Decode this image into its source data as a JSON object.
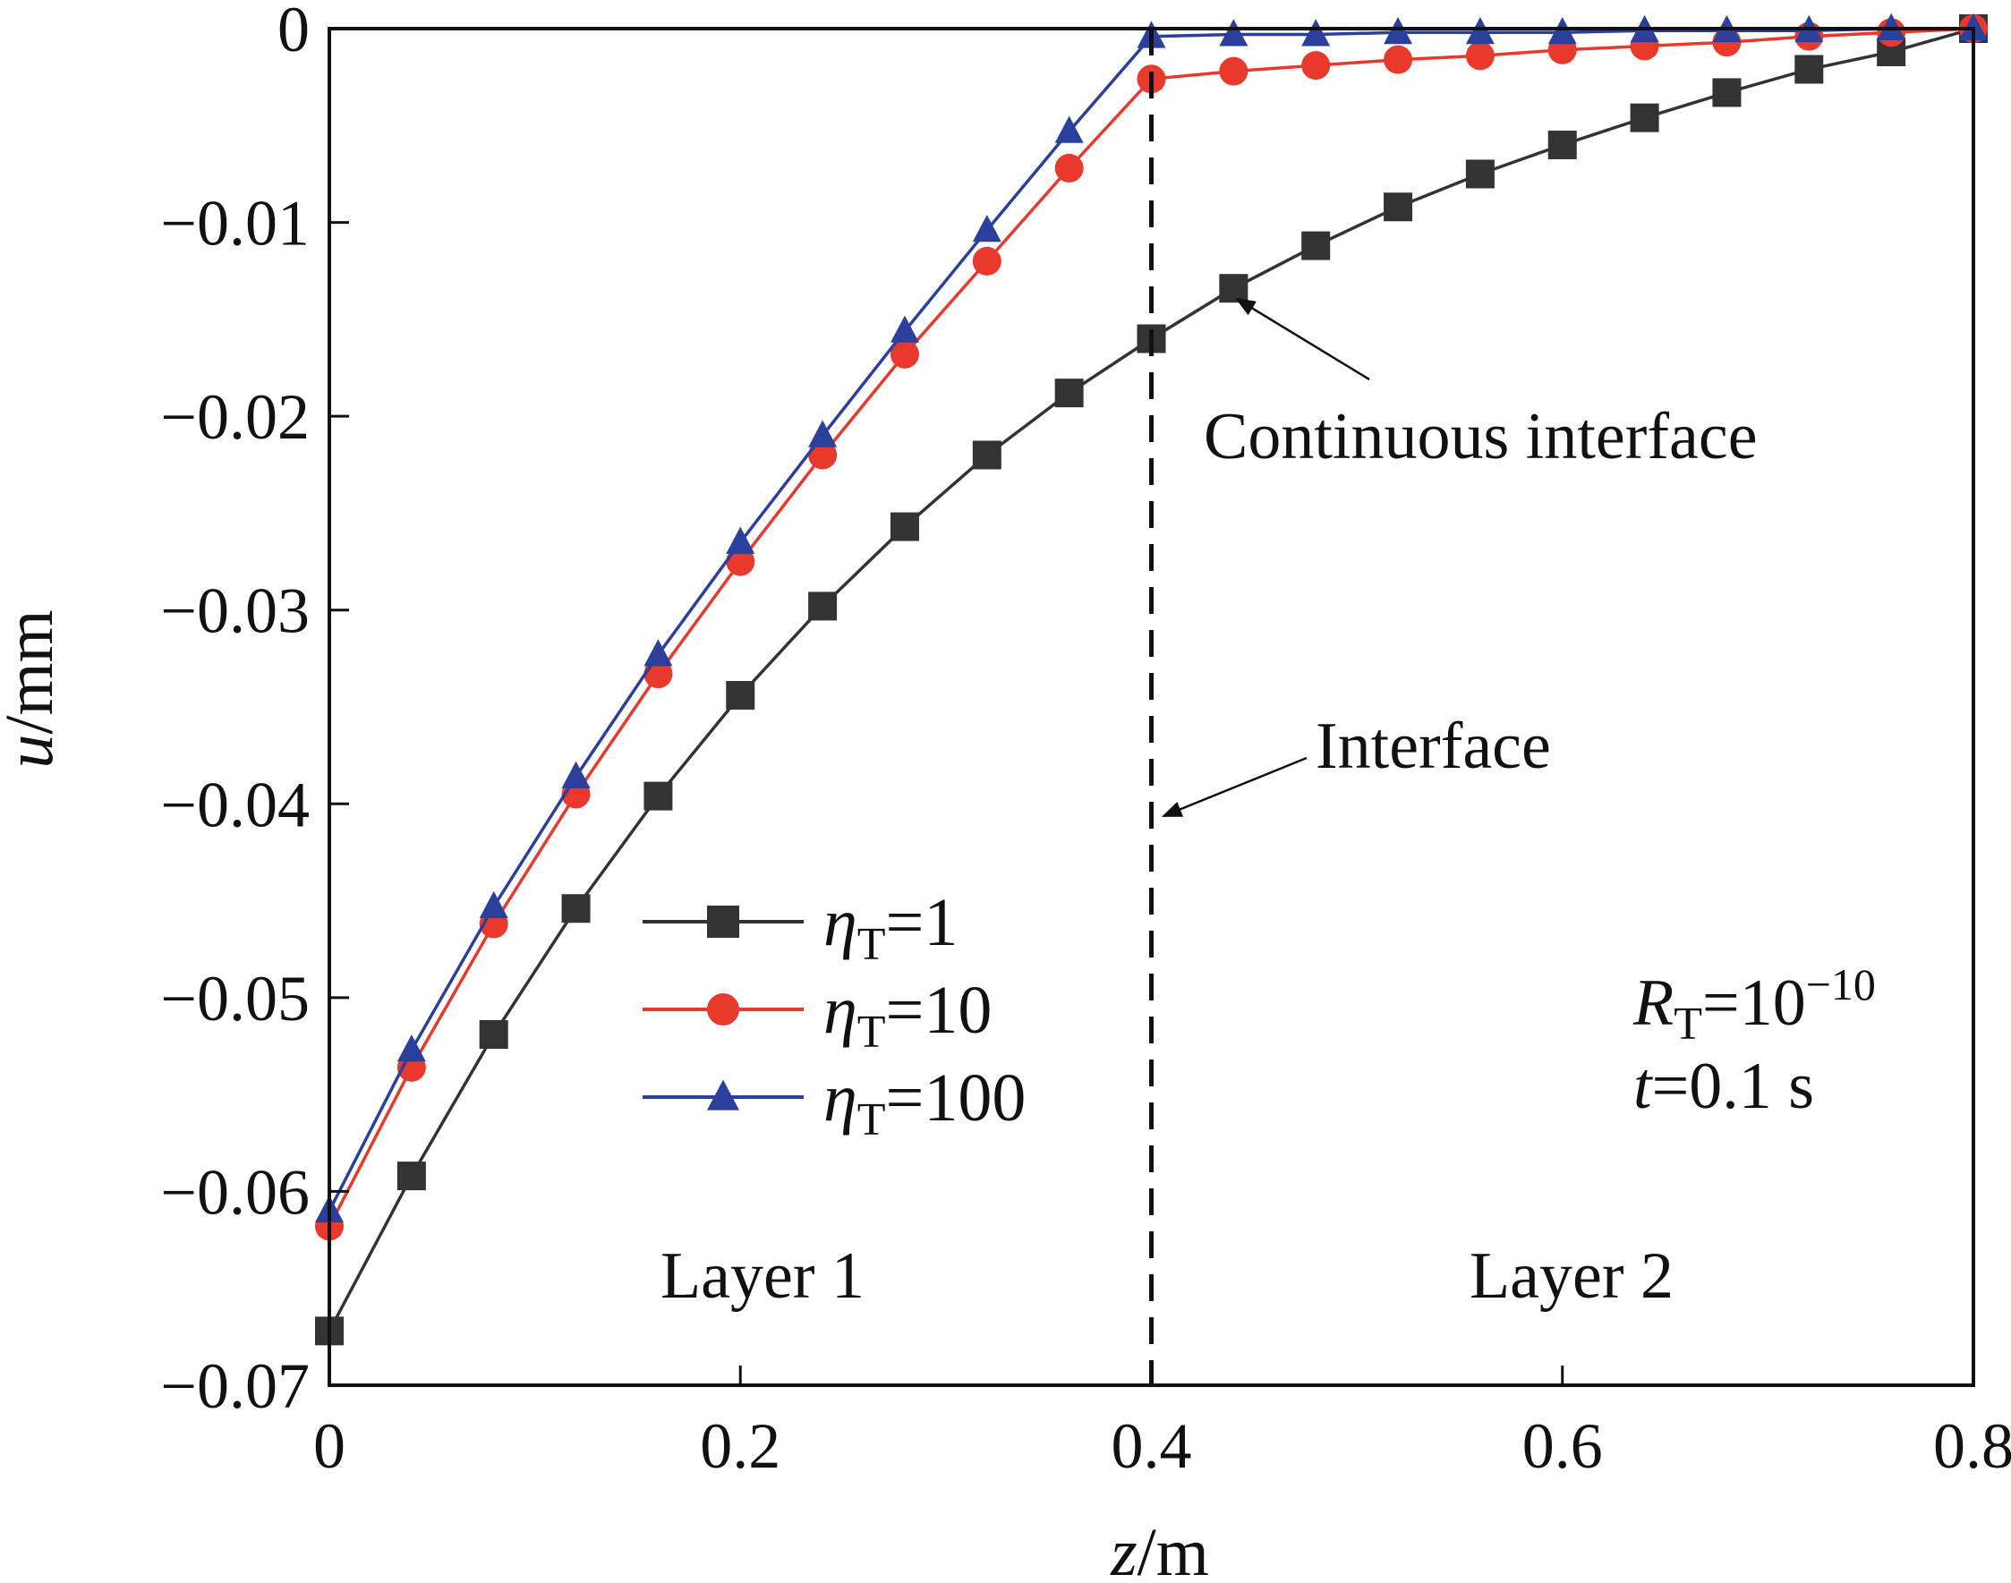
{
  "chart_data": {
    "type": "line",
    "xlabel": {
      "var": "z",
      "unit": "/m"
    },
    "ylabel": {
      "var": "u",
      "unit": "/mm"
    },
    "xlim": [
      0,
      0.8
    ],
    "ylim": [
      -0.07,
      0
    ],
    "x_ticks": [
      "0",
      "0.2",
      "0.4",
      "0.6",
      "0.8"
    ],
    "y_ticks": [
      "0",
      "−0.01",
      "−0.02",
      "−0.03",
      "−0.04",
      "−0.05",
      "−0.06",
      "−0.07"
    ],
    "x_tick_values": [
      0,
      0.2,
      0.4,
      0.6,
      0.8
    ],
    "y_tick_values": [
      0,
      -0.01,
      -0.02,
      -0.03,
      -0.04,
      -0.05,
      -0.06,
      -0.07
    ],
    "grid": false,
    "legend_position": "lower-left",
    "series": [
      {
        "name": {
          "sym": "η",
          "sub": "T",
          "rest": "=1"
        },
        "color": "#333333",
        "marker": "square",
        "x": [
          0,
          0.04,
          0.08,
          0.12,
          0.16,
          0.2,
          0.24,
          0.28,
          0.32,
          0.36,
          0.4,
          0.44,
          0.48,
          0.52,
          0.56,
          0.6,
          0.64,
          0.68,
          0.72,
          0.76,
          0.8
        ],
        "values": [
          -0.0672,
          -0.0592,
          -0.0519,
          -0.0454,
          -0.0396,
          -0.0344,
          -0.0298,
          -0.0257,
          -0.022,
          -0.0188,
          -0.016,
          -0.0134,
          -0.0112,
          -0.0092,
          -0.0075,
          -0.006,
          -0.0046,
          -0.0033,
          -0.0021,
          -0.0012,
          0
        ]
      },
      {
        "name": {
          "sym": "η",
          "sub": "T",
          "rest": "=10"
        },
        "color": "#e8392c",
        "marker": "circle",
        "x": [
          0,
          0.04,
          0.08,
          0.12,
          0.16,
          0.2,
          0.24,
          0.28,
          0.32,
          0.36,
          0.4,
          0.44,
          0.48,
          0.52,
          0.56,
          0.6,
          0.64,
          0.68,
          0.72,
          0.76,
          0.8
        ],
        "values": [
          -0.0618,
          -0.0536,
          -0.0462,
          -0.0395,
          -0.0333,
          -0.0275,
          -0.022,
          -0.0168,
          -0.012,
          -0.0072,
          -0.0026,
          -0.0022,
          -0.0019,
          -0.0016,
          -0.0014,
          -0.0011,
          -0.0009,
          -0.0007,
          -0.0004,
          -0.0002,
          0
        ]
      },
      {
        "name": {
          "sym": "η",
          "sub": "T",
          "rest": "=100"
        },
        "color": "#2b3f9c",
        "marker": "triangle",
        "x": [
          0,
          0.04,
          0.08,
          0.12,
          0.16,
          0.2,
          0.24,
          0.28,
          0.32,
          0.36,
          0.4,
          0.44,
          0.48,
          0.52,
          0.56,
          0.6,
          0.64,
          0.68,
          0.72,
          0.76,
          0.8
        ],
        "values": [
          -0.061,
          -0.0527,
          -0.0453,
          -0.0386,
          -0.0323,
          -0.0265,
          -0.021,
          -0.0156,
          -0.0104,
          -0.0053,
          -0.0004,
          -0.0003,
          -0.0003,
          -0.0002,
          -0.0002,
          -0.0002,
          -0.0001,
          -0.0001,
          -0.0001,
          0,
          0
        ]
      }
    ],
    "interface_x": 0.4,
    "annotations": {
      "continuous": "Continuous interface",
      "interface": "Interface",
      "layer1": "Layer 1",
      "layer2": "Layer 2",
      "rt": {
        "sym": "R",
        "sub": "T",
        "eq": "=10",
        "exp": "−10"
      },
      "time": {
        "sym": "t",
        "rest": "=0.1 s"
      }
    }
  }
}
